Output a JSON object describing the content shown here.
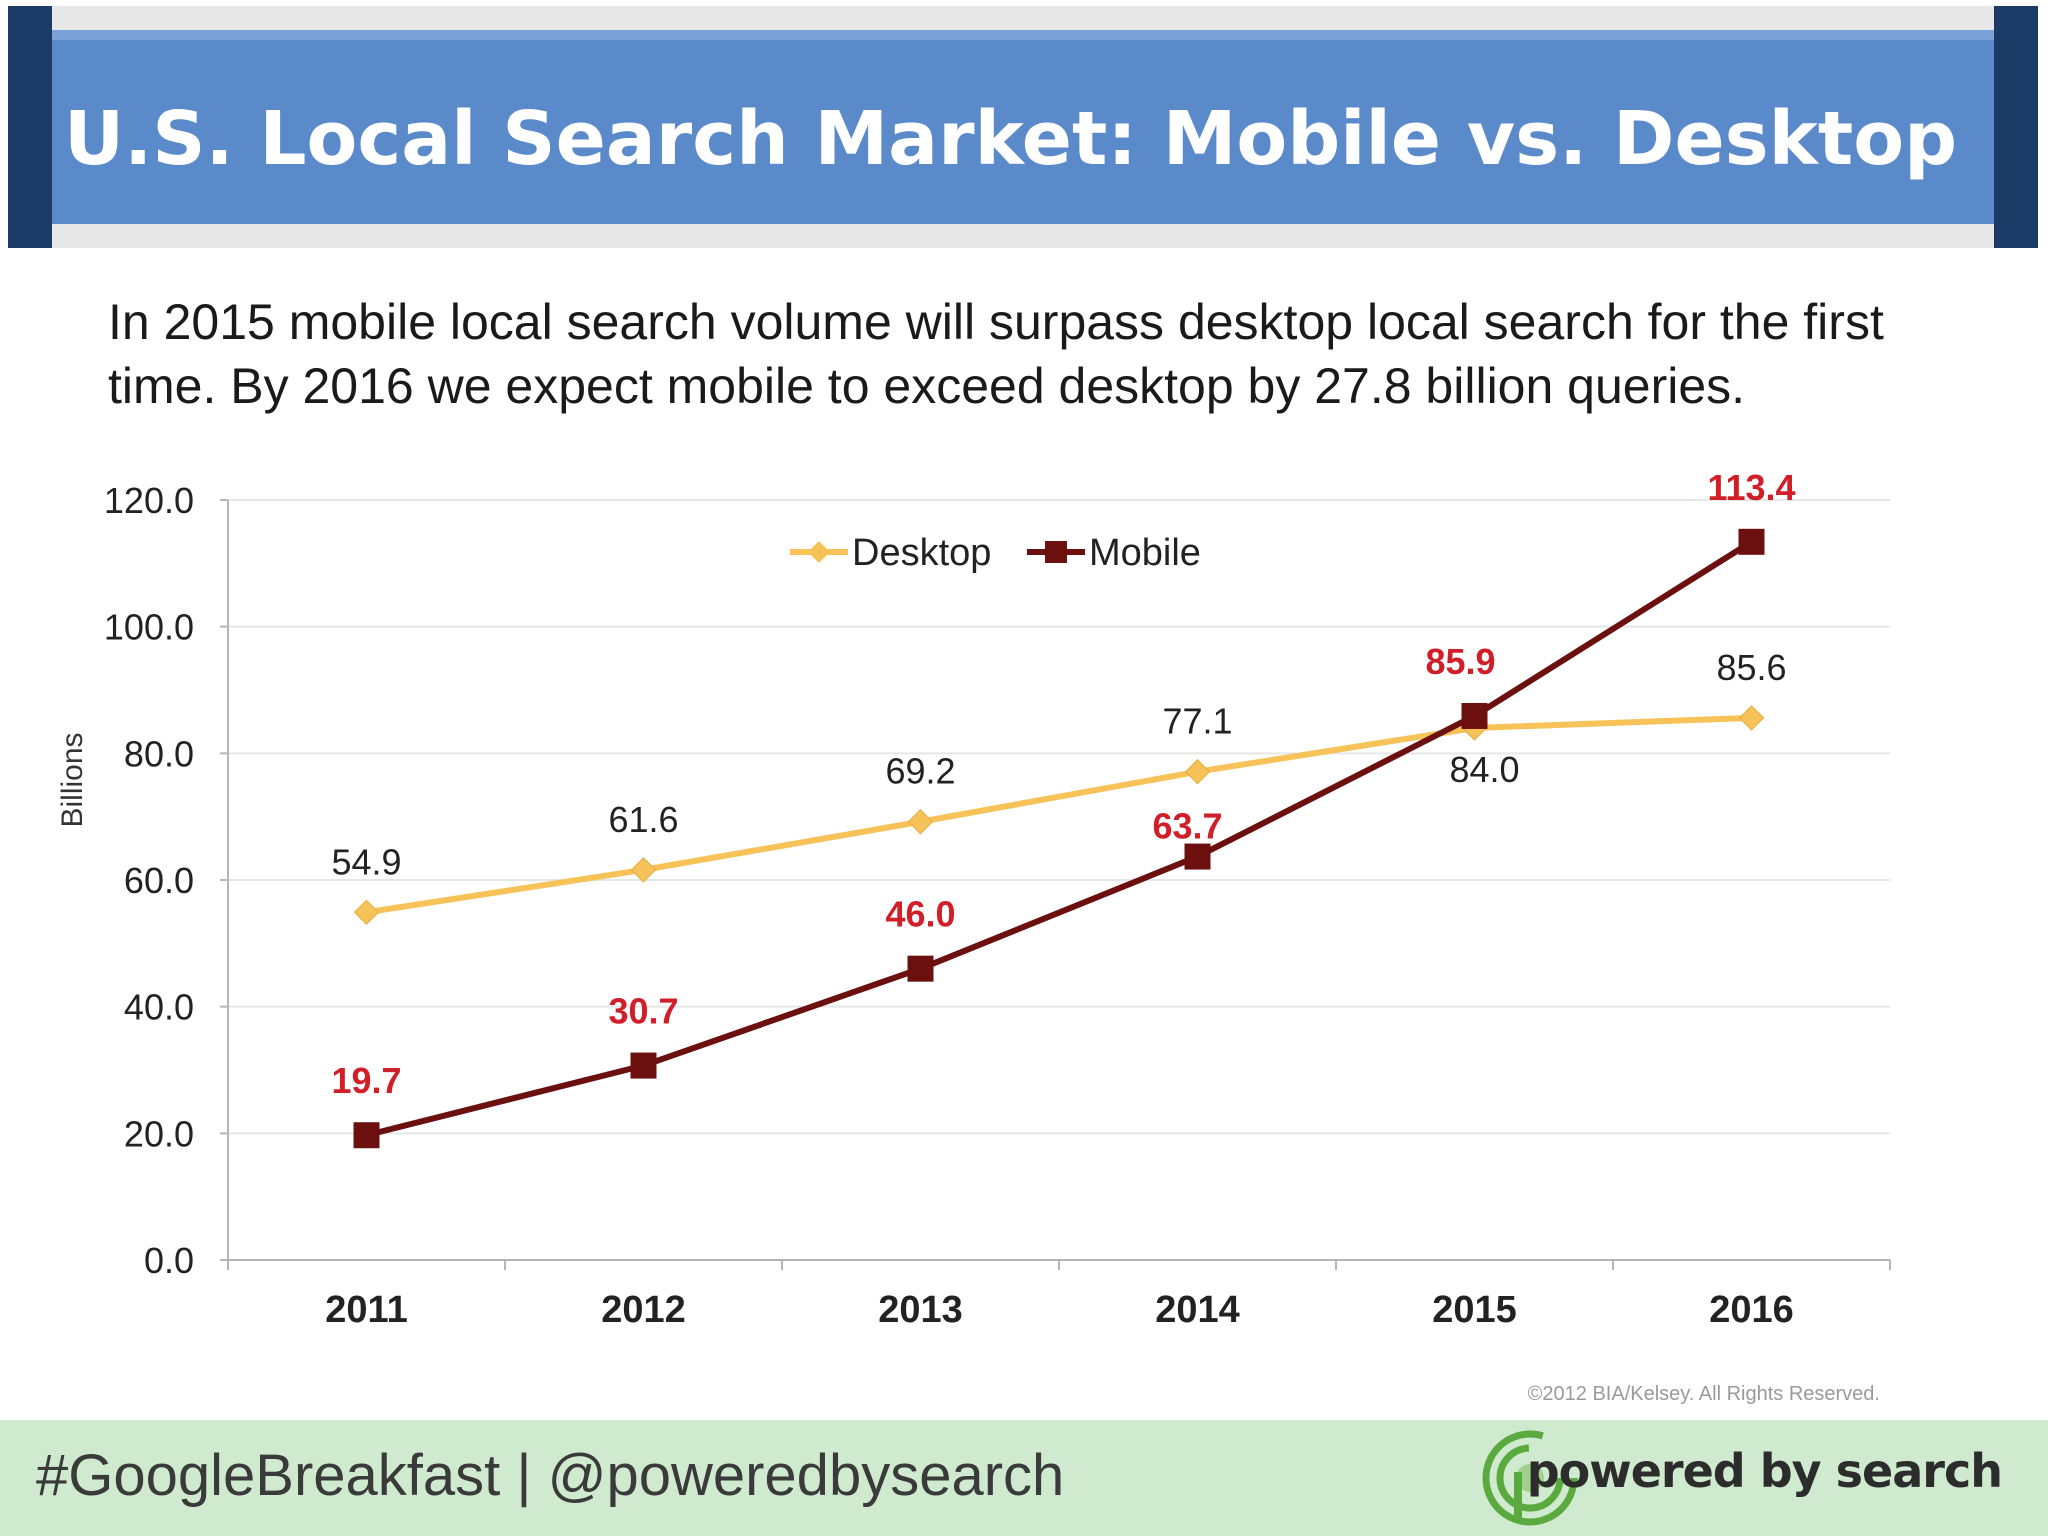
{
  "header": {
    "title": "U.S. Local Search Market: Mobile vs. Desktop",
    "subtitle": "In 2015 mobile local search volume will surpass desktop local search for the first time. By 2016 we expect mobile to exceed desktop by 27.8 billion queries."
  },
  "chart_data": {
    "type": "line",
    "title": "U.S. Local Search Market: Mobile vs. Desktop",
    "xlabel": "",
    "ylabel": "Billions",
    "categories": [
      "2011",
      "2012",
      "2013",
      "2014",
      "2015",
      "2016"
    ],
    "ylim": [
      0,
      120
    ],
    "yticks": [
      "0.0",
      "20.0",
      "40.0",
      "60.0",
      "80.0",
      "100.0",
      "120.0"
    ],
    "grid": true,
    "legend_position": "top-center",
    "series": [
      {
        "name": "Desktop",
        "values": [
          54.9,
          61.6,
          69.2,
          77.1,
          84.0,
          85.6
        ],
        "labels": [
          "54.9",
          "61.6",
          "69.2",
          "77.1",
          "84.0",
          "85.6"
        ],
        "color": "#f7c257",
        "marker": "diamond",
        "label_color": "#222222"
      },
      {
        "name": "Mobile",
        "values": [
          19.7,
          30.7,
          46.0,
          63.7,
          85.9,
          113.4
        ],
        "labels": [
          "19.7",
          "30.7",
          "46.0",
          "63.7",
          "85.9",
          "113.4"
        ],
        "color": "#6b0f0f",
        "marker": "square",
        "label_color": "#d11f2a"
      }
    ],
    "annotation": "©2012 BIA/Kelsey. All Rights Reserved."
  },
  "footer": {
    "tagline": "#GoogleBreakfast | @poweredbysearch",
    "brand": "powered by search",
    "logo_icon": "powered-by-search-logo-icon"
  },
  "colors": {
    "banner": "#5b8acb",
    "banner_edge": "#1b3a66",
    "footer_bg": "#cfeacf",
    "desktop": "#f7c257",
    "mobile": "#6b0f0f",
    "mobile_label": "#d11f2a"
  }
}
